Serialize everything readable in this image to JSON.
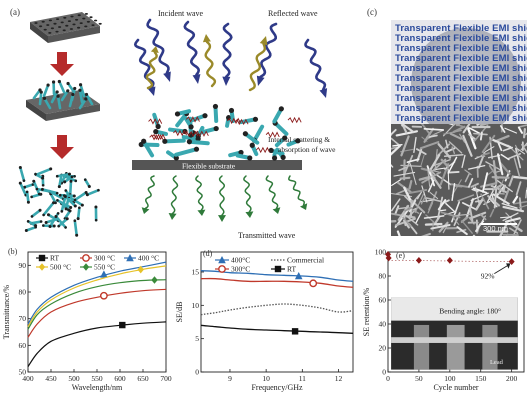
{
  "figure": {
    "labels": {
      "a": "(a)",
      "b": "(b)",
      "c": "(c)",
      "d": "(d)",
      "e": "(e)"
    }
  },
  "schematic": {
    "incident": "Incident wave",
    "reflected": "Reflected wave",
    "internal": "Internal scattering &",
    "internal2": "absorption of wave",
    "substrate": "Flexible substrate",
    "transmitted": "Transmitted wave"
  },
  "photo": {
    "film_text": "Transparent Flexible EMI shielding film",
    "film_lines": 10,
    "sem_scale": "300 nm"
  },
  "chart_data": [
    {
      "type": "line",
      "panel": "b",
      "xlabel": "Wavelength/nm",
      "ylabel": "Transmittance/%",
      "xlim": [
        400,
        700
      ],
      "ylim": [
        50,
        95
      ],
      "xticks": [
        "400",
        "450",
        "500",
        "550",
        "600",
        "650",
        "700"
      ],
      "yticks": [
        "50",
        "60",
        "70",
        "80",
        "90"
      ],
      "legend": [
        "RT",
        "300 °C",
        "400 °C",
        "500 °C",
        "550 °C"
      ],
      "series": [
        {
          "name": "RT",
          "color": "#111111",
          "marker": "square",
          "x": [
            400,
            420,
            450,
            500,
            550,
            600,
            650,
            700
          ],
          "y": [
            52,
            57,
            61.5,
            64.5,
            66.5,
            67.5,
            68.3,
            68.8
          ],
          "marker_at": 605,
          "marker_y": 67.6
        },
        {
          "name": "300 °C",
          "color": "#c0392b",
          "marker": "circle",
          "x": [
            400,
            420,
            450,
            500,
            550,
            600,
            650,
            700
          ],
          "y": [
            63,
            68,
            72.5,
            76,
            78,
            79.5,
            80.5,
            81
          ],
          "marker_at": 565,
          "marker_y": 78.6
        },
        {
          "name": "400 °C",
          "color": "#2e6fb5",
          "marker": "triangle",
          "x": [
            400,
            420,
            450,
            500,
            550,
            600,
            650,
            700
          ],
          "y": [
            68,
            73.5,
            78,
            82.5,
            85.5,
            87.8,
            89.5,
            91.2
          ],
          "marker_at": 565,
          "marker_y": 86.6
        },
        {
          "name": "500 °C",
          "color": "#e6c229",
          "marker": "diamond",
          "x": [
            400,
            420,
            450,
            500,
            550,
            600,
            650,
            700
          ],
          "y": [
            67,
            72.5,
            77,
            81.5,
            84.5,
            86.8,
            88.5,
            89.8
          ],
          "marker_at": 645,
          "marker_y": 88.4
        },
        {
          "name": "550 °C",
          "color": "#3a8a3a",
          "marker": "diamond",
          "x": [
            400,
            420,
            450,
            500,
            550,
            600,
            650,
            700
          ],
          "y": [
            66,
            71.5,
            75.5,
            79.5,
            82,
            83.5,
            84.3,
            84.6
          ],
          "marker_at": 675,
          "marker_y": 84.5
        }
      ]
    },
    {
      "type": "line",
      "panel": "d",
      "xlabel": "Frequency/GHz",
      "ylabel": "SE/dB",
      "xlim": [
        8.2,
        12.4
      ],
      "ylim": [
        0,
        18
      ],
      "xticks": [
        "9",
        "10",
        "11",
        "12"
      ],
      "yticks": [
        "0",
        "5",
        "10",
        "15"
      ],
      "legend": [
        "400°C",
        "Commercial",
        "300°C",
        "RT"
      ],
      "series": [
        {
          "name": "400°C",
          "color": "#2e6fb5",
          "marker": "triangle",
          "x": [
            8.2,
            8.6,
            9,
            9.5,
            10,
            10.5,
            11,
            11.5,
            12,
            12.4
          ],
          "y": [
            15.2,
            15.1,
            14.9,
            14.8,
            14.6,
            14.5,
            14.4,
            14.2,
            13.8,
            13.6
          ],
          "marker_at": 10.9,
          "marker_y": 14.4
        },
        {
          "name": "Commercial",
          "color": "#555555",
          "dashed": true,
          "x": [
            8.2,
            8.6,
            9,
            9.5,
            10,
            10.5,
            11,
            11.5,
            12,
            12.4
          ],
          "y": [
            8.6,
            8.9,
            9.3,
            9.7,
            10.0,
            10.2,
            10.0,
            9.6,
            9.0,
            9.2
          ]
        },
        {
          "name": "300°C",
          "color": "#c0392b",
          "marker": "circle",
          "x": [
            8.2,
            8.6,
            9,
            9.5,
            10,
            10.5,
            11,
            11.5,
            12,
            12.4
          ],
          "y": [
            14.0,
            14.0,
            13.8,
            13.6,
            13.6,
            13.6,
            13.5,
            13.3,
            12.9,
            12.7
          ],
          "marker_at": 11.3,
          "marker_y": 13.3
        },
        {
          "name": "RT",
          "color": "#111111",
          "marker": "square",
          "x": [
            8.2,
            8.6,
            9,
            9.5,
            10,
            10.5,
            11,
            11.5,
            12,
            12.4
          ],
          "y": [
            7.0,
            6.8,
            6.6,
            6.4,
            6.3,
            6.2,
            6.1,
            6.0,
            5.9,
            5.8
          ],
          "marker_at": 10.8,
          "marker_y": 6.1
        }
      ]
    },
    {
      "type": "scatter",
      "panel": "e",
      "xlabel": "Cycle number",
      "ylabel": "SE retention/%",
      "xlim": [
        0,
        220
      ],
      "ylim": [
        0,
        100
      ],
      "xticks": [
        "0",
        "50",
        "100",
        "150",
        "200"
      ],
      "yticks": [
        "0",
        "20",
        "40",
        "60",
        "80",
        "100"
      ],
      "color": "#8b1a1a",
      "x": [
        0,
        1,
        50,
        100,
        200
      ],
      "y": [
        98,
        95,
        93,
        93,
        92
      ],
      "annotation": "92%",
      "inset_text": "Bending angle: 180°",
      "inset_label": "Lead"
    }
  ]
}
